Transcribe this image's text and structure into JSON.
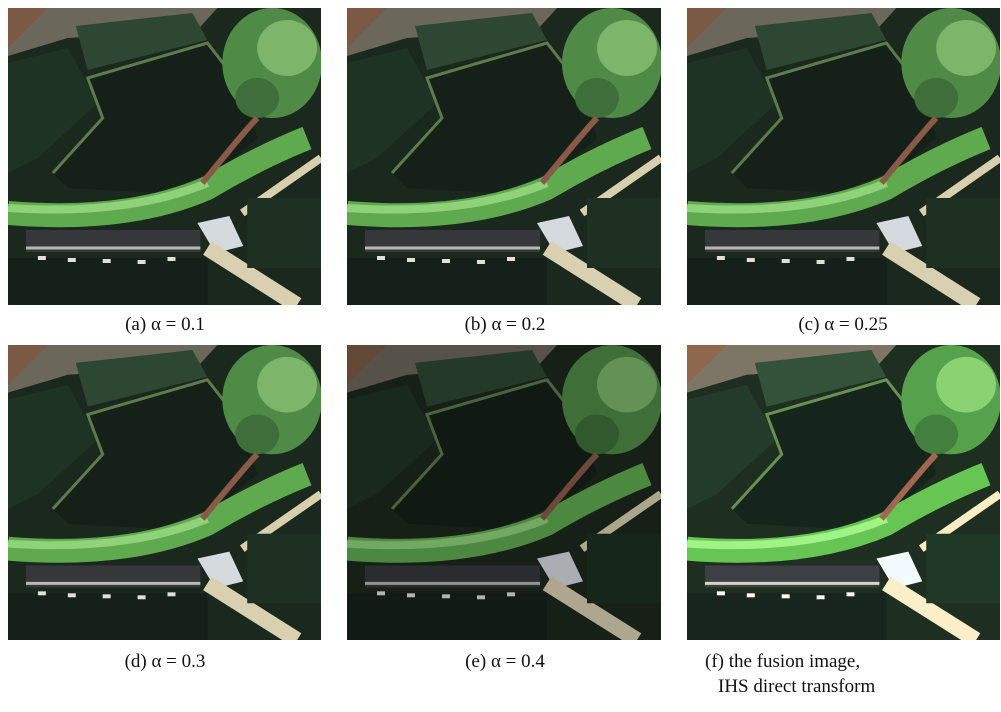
{
  "panels": [
    {
      "caption": "(a) α = 0.1"
    },
    {
      "caption": "(b) α = 0.2"
    },
    {
      "caption": "(c) α = 0.25"
    },
    {
      "caption": "(d) α = 0.3"
    },
    {
      "caption": "(e) α = 0.4"
    },
    {
      "caption": [
        "(f) the fusion image,",
        "IHS direct transform"
      ]
    }
  ]
}
